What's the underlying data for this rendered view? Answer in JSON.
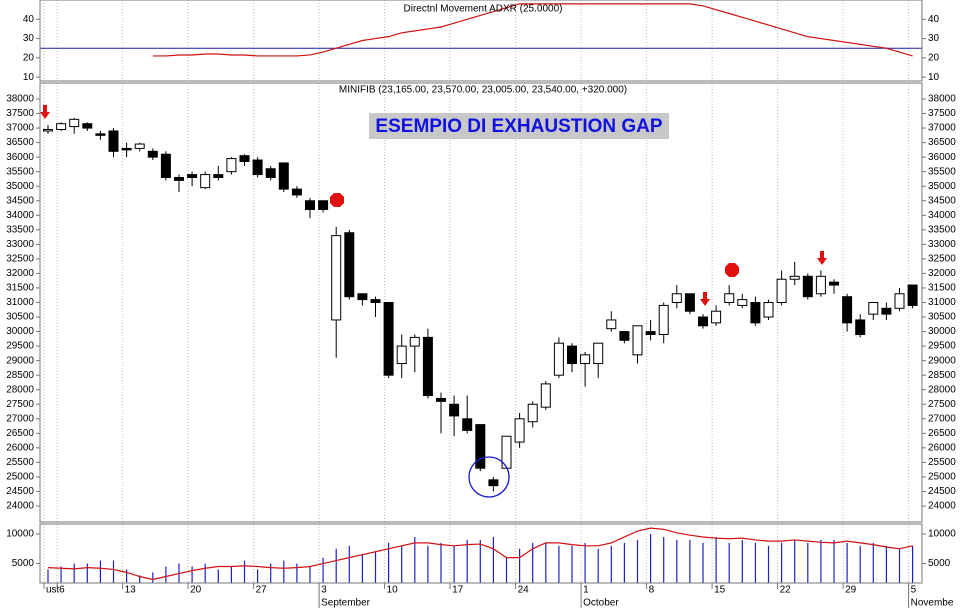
{
  "chart_data": [
    {
      "type": "line",
      "title": "Directnl Movement ADXR (25.0000)",
      "ylim": [
        8,
        50
      ],
      "yticks": [
        10,
        20,
        30,
        40
      ],
      "ref_line": 25,
      "ref_color": "#1a1aa0",
      "series": [
        {
          "name": "ADXR",
          "color": "#d01010",
          "values": [
            null,
            null,
            null,
            null,
            null,
            null,
            null,
            null,
            21,
            21,
            21.5,
            21.5,
            22,
            22,
            21.5,
            21.5,
            21,
            21,
            21,
            21,
            21.5,
            23,
            25,
            27,
            29,
            30,
            31,
            33,
            34,
            35,
            36,
            38,
            40,
            42,
            44,
            46,
            48,
            48,
            48,
            48,
            48,
            48,
            48,
            48,
            48,
            48,
            48,
            48,
            48,
            48,
            47,
            45,
            43,
            41,
            39,
            37,
            35,
            33,
            31,
            30,
            29,
            28,
            27,
            26,
            25,
            23,
            21
          ]
        }
      ]
    },
    {
      "type": "candlestick",
      "title": "MINIFIB (23,165.00, 23,570.00, 23,005.00, 23,540.00, +320.000)",
      "annotation": "ESEMPIO DI EXHAUSTION GAP",
      "ylim": [
        23450,
        38550
      ],
      "yticks": [
        24000,
        24500,
        25000,
        25500,
        26000,
        26500,
        27000,
        27500,
        28000,
        28500,
        29000,
        29500,
        30000,
        30500,
        31000,
        31500,
        32000,
        32500,
        33000,
        33500,
        34000,
        34500,
        35000,
        35500,
        36000,
        36500,
        37000,
        37500,
        38000
      ],
      "categories": [
        "ust",
        "6",
        null,
        null,
        null,
        null,
        "13",
        null,
        null,
        null,
        null,
        "20",
        null,
        null,
        null,
        null,
        "27",
        null,
        null,
        null,
        null,
        "3",
        null,
        null,
        null,
        null,
        "10",
        null,
        null,
        null,
        null,
        "17",
        null,
        null,
        null,
        null,
        "24",
        null,
        null,
        null,
        null,
        "1",
        null,
        null,
        null,
        null,
        "8",
        null,
        null,
        null,
        null,
        "15",
        null,
        null,
        null,
        null,
        "22",
        null,
        null,
        null,
        null,
        "29",
        null,
        null,
        null,
        null,
        "5"
      ],
      "months": [
        null,
        null,
        null,
        null,
        null,
        null,
        null,
        null,
        null,
        null,
        null,
        null,
        null,
        null,
        null,
        null,
        null,
        null,
        null,
        null,
        null,
        "September",
        null,
        null,
        null,
        null,
        null,
        null,
        null,
        null,
        null,
        null,
        null,
        null,
        null,
        null,
        null,
        null,
        null,
        null,
        null,
        "October",
        null,
        null,
        null,
        null,
        null,
        null,
        null,
        null,
        null,
        null,
        null,
        null,
        null,
        null,
        null,
        null,
        null,
        null,
        null,
        null,
        null,
        null,
        null,
        null,
        "Novembe"
      ],
      "open": [
        36900,
        36950,
        37050,
        37150,
        36800,
        36900,
        36300,
        36300,
        36200,
        36100,
        35300,
        35400,
        34950,
        35400,
        35500,
        36050,
        35900,
        35600,
        35800,
        34900,
        34500,
        34500,
        30400,
        33400,
        31300,
        31100,
        31000,
        28900,
        29500,
        29800,
        27700,
        27500,
        27000,
        26800,
        24900,
        25300,
        26200,
        26900,
        27400,
        28500,
        29500,
        28900,
        28900,
        30100,
        30000,
        29200,
        30000,
        29900,
        31000,
        31300,
        30500,
        30300,
        31000,
        30900,
        31000,
        30500,
        31000,
        31800,
        31900,
        31300,
        31700,
        31200,
        30400,
        30600,
        30800,
        30800,
        31600
      ],
      "high": [
        37100,
        37200,
        37350,
        37200,
        36900,
        37000,
        36500,
        36500,
        36300,
        36200,
        35400,
        35500,
        35500,
        35700,
        36000,
        36100,
        36000,
        35700,
        35800,
        35000,
        34600,
        34500,
        33600,
        33500,
        31300,
        31200,
        31000,
        29900,
        29900,
        30100,
        27900,
        27800,
        27800,
        26800,
        25000,
        26400,
        27200,
        27600,
        28300,
        29800,
        29600,
        29300,
        29600,
        30700,
        30000,
        30200,
        30400,
        31000,
        31600,
        31300,
        30600,
        30900,
        31600,
        31300,
        31200,
        31100,
        32100,
        32400,
        32000,
        32100,
        31800,
        31300,
        30600,
        31000,
        31000,
        31500,
        31600
      ],
      "low": [
        36800,
        36900,
        36800,
        36900,
        36600,
        36000,
        36000,
        36200,
        35900,
        35200,
        34800,
        35000,
        34900,
        35200,
        35400,
        35700,
        35300,
        35200,
        34800,
        34600,
        33900,
        34100,
        29100,
        31100,
        30900,
        30500,
        28400,
        28400,
        28600,
        27700,
        26500,
        26400,
        26500,
        25200,
        24500,
        25300,
        26000,
        26700,
        27300,
        28400,
        28600,
        28100,
        28400,
        30000,
        29600,
        28900,
        29700,
        29600,
        30800,
        30600,
        30100,
        30200,
        30900,
        30800,
        30200,
        30400,
        30900,
        31600,
        31100,
        31200,
        31300,
        30000,
        29800,
        30400,
        30400,
        30700,
        30800
      ],
      "close": [
        36950,
        37150,
        37300,
        37000,
        36750,
        36200,
        36250,
        36450,
        36000,
        35300,
        35200,
        35300,
        35400,
        35300,
        35950,
        35850,
        35400,
        35300,
        34900,
        34700,
        34200,
        34200,
        33300,
        31200,
        31100,
        31000,
        28500,
        29500,
        29800,
        27800,
        27600,
        27100,
        26600,
        25300,
        24700,
        26400,
        27000,
        27500,
        28200,
        29600,
        28900,
        29200,
        29600,
        30400,
        29700,
        30200,
        29900,
        30900,
        31300,
        30700,
        30200,
        30700,
        31300,
        31100,
        30300,
        31000,
        31800,
        31900,
        31200,
        31900,
        31600,
        30300,
        29900,
        31000,
        30600,
        31300,
        30900
      ]
    },
    {
      "type": "bar",
      "ylim": [
        1700,
        11700
      ],
      "yticks": [
        5000,
        10000
      ],
      "series": [
        {
          "name": "Volume",
          "color": "#2020c0",
          "values": [
            4000,
            4500,
            5000,
            5000,
            5500,
            5500,
            4000,
            3000,
            3500,
            4500,
            5000,
            4500,
            5000,
            4000,
            4500,
            5500,
            4000,
            5000,
            5500,
            5000,
            4500,
            6000,
            7500,
            8000,
            6500,
            7000,
            8500,
            8000,
            9500,
            8000,
            8500,
            8000,
            9000,
            9000,
            9500,
            6000,
            7500,
            8500,
            8500,
            8000,
            8000,
            8500,
            7500,
            8000,
            8500,
            9000,
            10000,
            9500,
            9000,
            9000,
            8500,
            9500,
            8500,
            9000,
            8500,
            8000,
            8500,
            9000,
            8500,
            9000,
            9000,
            8500,
            8000,
            8500,
            8000,
            7500,
            8000
          ]
        },
        {
          "name": "Volume average",
          "color": "#d01010",
          "values": [
            4300,
            4200,
            4100,
            4300,
            4200,
            4000,
            3500,
            2800,
            2300,
            2800,
            3300,
            3800,
            4200,
            4500,
            4500,
            4600,
            4500,
            4300,
            4200,
            4300,
            4500,
            5000,
            5500,
            6000,
            6500,
            7000,
            7500,
            8000,
            8500,
            8500,
            8200,
            8000,
            8200,
            8300,
            7500,
            6000,
            6000,
            7500,
            8500,
            8500,
            8200,
            8000,
            8000,
            8500,
            9500,
            10500,
            11000,
            10800,
            10200,
            9800,
            9500,
            9300,
            9200,
            9300,
            9000,
            8800,
            8800,
            9000,
            8800,
            8600,
            8500,
            8800,
            8500,
            8200,
            7800,
            7500,
            8000
          ]
        }
      ]
    }
  ]
}
